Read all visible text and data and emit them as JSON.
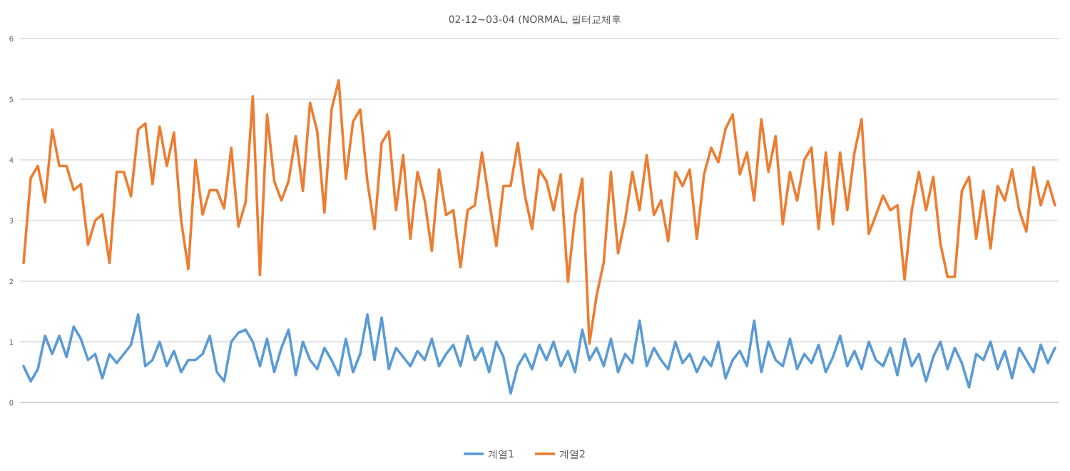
{
  "chart_data": {
    "type": "line",
    "title": "02-12~03-04 (NORMAL, 필터교체후",
    "categories": [
      null,
      null,
      null,
      null,
      null,
      null,
      null,
      null,
      null,
      null,
      null,
      null,
      null,
      null,
      null,
      null,
      null,
      null,
      null,
      null,
      null,
      null,
      null,
      null,
      null,
      null,
      null,
      null,
      null,
      null,
      null,
      null,
      null,
      null,
      null,
      null,
      null,
      null,
      null,
      null,
      null,
      null,
      null,
      null,
      null,
      null,
      null,
      null,
      null,
      null,
      null,
      null,
      null,
      null,
      null,
      null,
      null,
      null,
      null,
      null,
      null,
      null,
      null,
      null,
      null,
      null,
      null,
      null,
      null,
      null,
      null,
      null,
      null,
      null,
      null,
      null,
      null,
      null,
      null,
      null,
      null,
      null,
      null,
      null,
      null,
      null,
      null,
      null,
      null,
      null,
      null,
      null,
      null,
      null,
      null,
      null,
      null,
      null,
      null,
      null,
      null,
      null,
      null,
      null,
      null,
      null,
      null,
      null,
      null,
      null,
      null,
      null,
      null,
      null,
      null,
      null,
      null,
      null,
      null,
      null,
      null,
      null,
      null,
      null,
      null,
      null,
      null,
      null,
      null,
      null,
      null,
      null,
      null,
      null,
      null,
      null,
      null,
      null,
      null,
      null,
      null,
      null,
      null,
      null,
      null
    ],
    "series": [
      {
        "name": "계열1",
        "color": "#5b9bd5",
        "values": [
          0.6,
          0.35,
          0.55,
          1.1,
          0.8,
          1.1,
          0.75,
          1.25,
          1.05,
          0.7,
          0.8,
          0.4,
          0.8,
          0.65,
          0.8,
          0.95,
          1.45,
          0.6,
          0.7,
          1.0,
          0.6,
          0.85,
          0.5,
          0.7,
          0.7,
          0.8,
          1.1,
          0.5,
          0.35,
          1.0,
          1.15,
          1.2,
          1.0,
          0.6,
          1.05,
          0.5,
          0.9,
          1.2,
          0.45,
          1.0,
          0.7,
          0.55,
          0.9,
          0.7,
          0.45,
          1.05,
          0.5,
          0.8,
          1.45,
          0.7,
          1.4,
          0.55,
          0.9,
          0.75,
          0.6,
          0.85,
          0.7,
          1.05,
          0.6,
          0.8,
          0.95,
          0.6,
          1.1,
          0.7,
          0.9,
          0.5,
          1.0,
          0.75,
          0.15,
          0.6,
          0.8,
          0.55,
          0.95,
          0.7,
          1.0,
          0.6,
          0.85,
          0.5,
          1.2,
          0.7,
          0.9,
          0.6,
          1.05,
          0.5,
          0.8,
          0.65,
          1.35,
          0.6,
          0.9,
          0.7,
          0.55,
          1.0,
          0.65,
          0.8,
          0.5,
          0.75,
          0.6,
          1.0,
          0.4,
          0.7,
          0.85,
          0.6,
          1.35,
          0.5,
          1.0,
          0.7,
          0.6,
          1.05,
          0.55,
          0.8,
          0.65,
          0.95,
          0.5,
          0.75,
          1.1,
          0.6,
          0.85,
          0.55,
          1.0,
          0.7,
          0.6,
          0.9,
          0.45,
          1.05,
          0.6,
          0.8,
          0.35,
          0.75,
          1.0,
          0.55,
          0.9,
          0.65,
          0.25,
          0.8,
          0.7,
          1.0,
          0.55,
          0.85,
          0.4,
          0.9,
          0.7,
          0.5,
          0.95,
          0.65,
          0.9
        ]
      },
      {
        "name": "계열2",
        "color": "#ed7d31",
        "values": [
          2.3,
          3.7,
          3.9,
          3.3,
          4.5,
          3.9,
          3.9,
          3.5,
          3.6,
          2.6,
          3.0,
          3.1,
          2.3,
          3.8,
          3.8,
          3.4,
          4.5,
          4.6,
          3.6,
          4.55,
          3.9,
          4.45,
          3.0,
          2.2,
          4.0,
          3.1,
          3.5,
          3.5,
          3.2,
          4.2,
          2.9,
          3.3,
          5.05,
          2.1,
          4.75,
          3.65,
          3.33,
          3.65,
          4.39,
          3.49,
          4.94,
          4.47,
          3.13,
          4.83,
          5.31,
          3.69,
          4.63,
          4.83,
          3.65,
          2.86,
          4.28,
          4.47,
          3.17,
          4.08,
          2.7,
          3.8,
          3.33,
          2.5,
          3.84,
          3.09,
          3.17,
          2.23,
          3.17,
          3.25,
          4.12,
          3.33,
          2.58,
          3.57,
          3.57,
          4.28,
          3.41,
          2.86,
          3.84,
          3.65,
          3.17,
          3.76,
          1.99,
          3.09,
          3.69,
          0.97,
          1.76,
          2.31,
          3.8,
          2.46,
          3.02,
          3.8,
          3.17,
          4.08,
          3.09,
          3.33,
          2.66,
          3.8,
          3.57,
          3.84,
          2.7,
          3.76,
          4.2,
          3.96,
          4.51,
          4.75,
          3.76,
          4.12,
          3.33,
          4.67,
          3.8,
          4.39,
          2.94,
          3.8,
          3.33,
          4.0,
          4.2,
          2.86,
          4.12,
          2.94,
          4.12,
          3.17,
          4.12,
          4.67,
          2.78,
          3.09,
          3.41,
          3.17,
          3.25,
          2.03,
          3.17,
          3.8,
          3.17,
          3.72,
          2.62,
          2.07,
          2.07,
          3.49,
          3.72,
          2.7,
          3.49,
          2.54,
          3.57,
          3.33,
          3.84,
          3.17,
          2.82,
          3.88,
          3.25,
          3.65,
          3.25
        ]
      }
    ],
    "ylim": [
      0,
      6
    ],
    "yticks": [
      0,
      1,
      2,
      3,
      4,
      5,
      6
    ],
    "grid": "y",
    "legend": "bottom",
    "line_style": "solid",
    "marker": "none"
  }
}
